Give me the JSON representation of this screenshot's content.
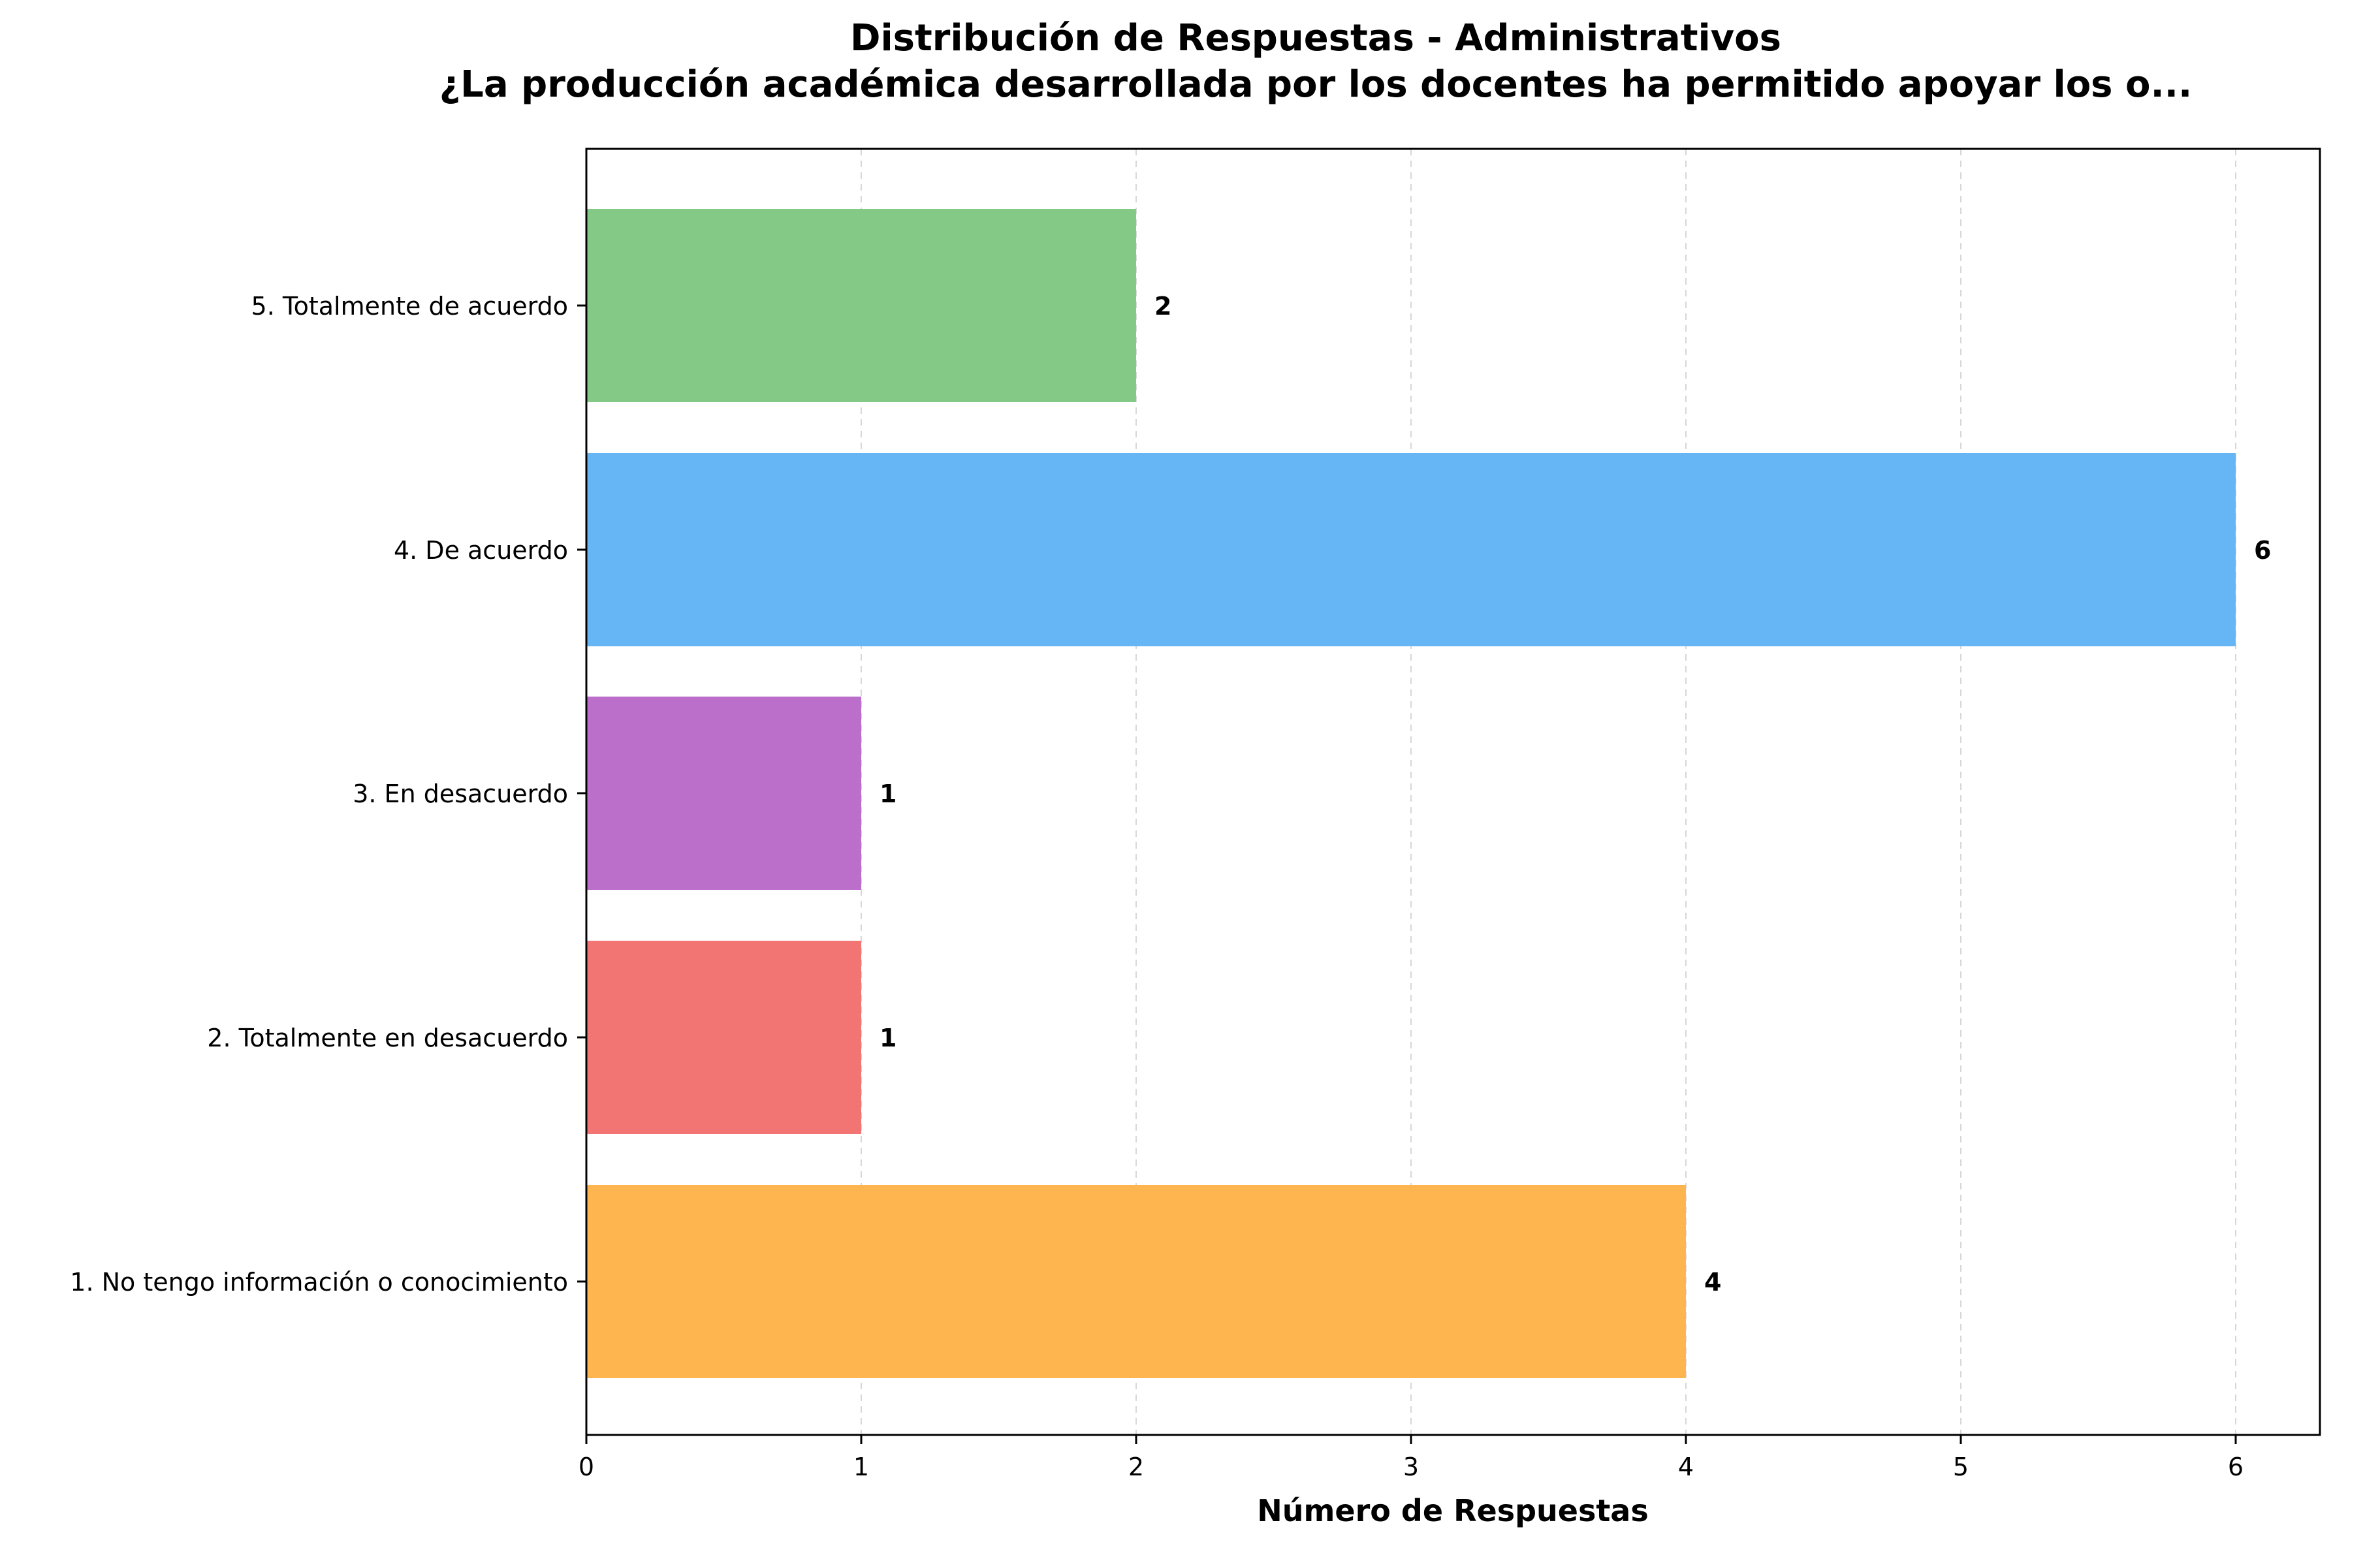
{
  "chart_data": {
    "type": "bar",
    "orientation": "horizontal",
    "title": "Distribución de Respuestas - Administrativos",
    "subtitle": "¿La producción académica desarrollada por los docentes ha permitido apoyar los o...",
    "xlabel": "Número de Respuestas",
    "ylabel": "",
    "xlim": [
      0,
      6.3
    ],
    "xticks": [
      "0",
      "1",
      "2",
      "3",
      "4",
      "5",
      "6"
    ],
    "grid": "vertical-dashed",
    "categories": [
      "1. No tengo información o conocimiento",
      "2. Totalmente en desacuerdo",
      "3. En desacuerdo",
      "4. De acuerdo",
      "5. Totalmente de acuerdo"
    ],
    "values": [
      4,
      1,
      1,
      6,
      2
    ],
    "value_labels": [
      "4",
      "1",
      "1",
      "6",
      "2"
    ],
    "colors": [
      "#FFB54F",
      "#F27573",
      "#BB6FCB",
      "#66B6F5",
      "#85C987"
    ]
  }
}
